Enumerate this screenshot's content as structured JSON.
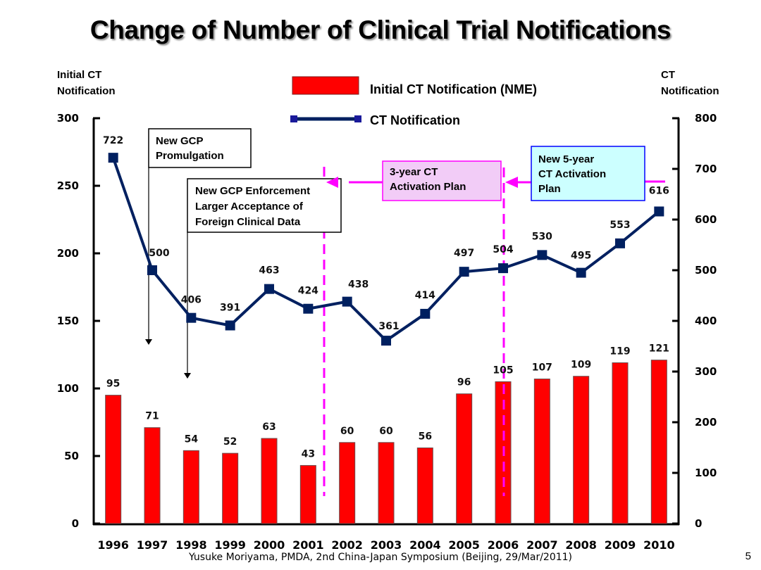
{
  "slide": {
    "title": "Change of Number of Clinical Trial Notifications",
    "footer": "Yusuke Moriyama, PMDA, 2nd China-Japan Symposium (Beijing, 29/Mar/2011)",
    "page_number": "5"
  },
  "chart_data": {
    "type": "bar+line",
    "title": "Change of Number of Clinical Trial Notifications",
    "categories": [
      "1996",
      "1997",
      "1998",
      "1999",
      "2000",
      "2001",
      "2002",
      "2003",
      "2004",
      "2005",
      "2006",
      "2007",
      "2008",
      "2009",
      "2010"
    ],
    "series": [
      {
        "name": "Initial CT Notification (NME)",
        "type": "bar",
        "axis": "left",
        "color": "#ff0000",
        "values": [
          95,
          71,
          54,
          52,
          63,
          43,
          60,
          60,
          56,
          96,
          105,
          107,
          109,
          119,
          121
        ]
      },
      {
        "name": "CT Notification",
        "type": "line",
        "axis": "right",
        "color": "#002060",
        "marker": "square",
        "values": [
          722,
          500,
          406,
          391,
          463,
          424,
          438,
          361,
          414,
          497,
          504,
          530,
          495,
          553,
          616
        ]
      }
    ],
    "y_left": {
      "label_lines": [
        "Initial CT",
        "Notification"
      ],
      "range": [
        0,
        300
      ],
      "ticks": [
        0,
        50,
        100,
        150,
        200,
        250,
        300
      ]
    },
    "y_right": {
      "label_lines": [
        "CT",
        "Notification"
      ],
      "range": [
        0,
        800
      ],
      "ticks": [
        0,
        100,
        200,
        300,
        400,
        500,
        600,
        700,
        800
      ]
    },
    "grid": false,
    "legend": {
      "placement": "top-center",
      "entries": [
        "Initial CT Notification (NME)",
        "CT Notification"
      ]
    },
    "annotations": [
      {
        "id": "gcp-promulgation",
        "lines": [
          "New GCP",
          "Promulgation"
        ],
        "points_to": "1997"
      },
      {
        "id": "gcp-enforcement",
        "lines": [
          "New GCP Enforcement",
          "Larger Acceptance of",
          "Foreign Clinical Data"
        ],
        "points_to": "1998"
      },
      {
        "id": "three-year-plan",
        "lines": [
          "3-year CT",
          "Activation Plan"
        ],
        "span": [
          "2001.5",
          "2006"
        ],
        "fill": "#f2ccf7",
        "border": "#ff00ff"
      },
      {
        "id": "five-year-plan",
        "lines": [
          "New 5-year",
          "CT Activation",
          "Plan"
        ],
        "span": [
          "2006",
          "2010+"
        ],
        "fill": "#ccffff",
        "border": "#0000ff"
      }
    ],
    "markers": [
      {
        "type": "dashed-vline",
        "at": "between 2001 and 2002",
        "color": "#ff00ff"
      },
      {
        "type": "dashed-vline",
        "at": "2006",
        "color": "#ff00ff"
      }
    ]
  }
}
